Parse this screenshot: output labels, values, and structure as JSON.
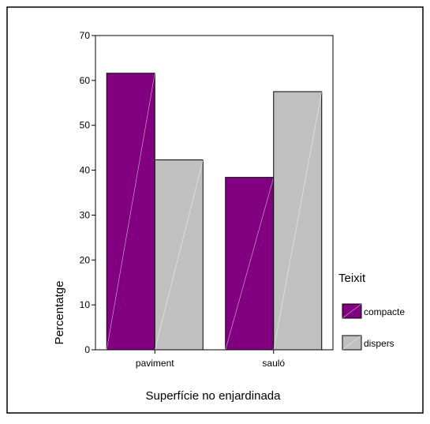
{
  "chart_data": {
    "type": "bar",
    "categories": [
      "paviment",
      "sauló"
    ],
    "series": [
      {
        "name": "compacte",
        "values": [
          61.6,
          38.4
        ],
        "color": "#800080"
      },
      {
        "name": "dispers",
        "values": [
          42.3,
          57.5
        ],
        "color": "#c0c0c0"
      }
    ],
    "xlabel": "Superfície no enjardinada",
    "ylabel": "Percentatge",
    "ylim": [
      0,
      70
    ],
    "yticks": [
      0,
      10,
      20,
      30,
      40,
      50,
      60,
      70
    ],
    "grid": false,
    "legend": {
      "title": "Teixit",
      "placement": "right"
    }
  }
}
